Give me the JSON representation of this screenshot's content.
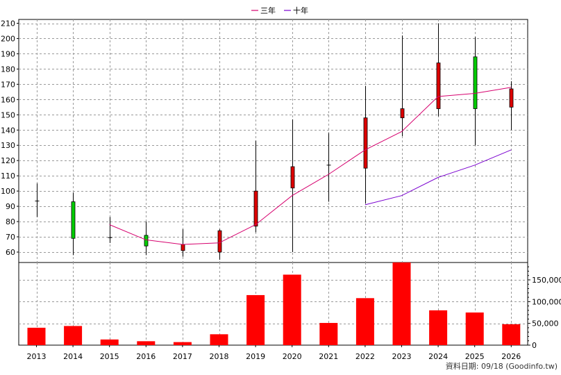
{
  "legend": {
    "items": [
      {
        "label": "三年",
        "color": "#d6006e"
      },
      {
        "label": "十年",
        "color": "#7a00d0"
      }
    ]
  },
  "footer": {
    "source": "資料日期: 09/18  (Goodinfo.tw)"
  },
  "colors": {
    "up_candle": "#dd0000",
    "down_candle": "#00cc00",
    "volume": "#ff0000",
    "grid": "#999999"
  },
  "chart_data": [
    {
      "type": "candlestick",
      "categories": [
        "2013",
        "2014",
        "2015",
        "2016",
        "2017",
        "2018",
        "2019",
        "2020",
        "2021",
        "2022",
        "2023",
        "2024",
        "2025",
        "2026"
      ],
      "ylim": [
        52,
        212
      ],
      "yticks": [
        60,
        70,
        80,
        90,
        100,
        110,
        120,
        130,
        140,
        150,
        160,
        170,
        180,
        190,
        200,
        210
      ],
      "grid": true,
      "legend_position": "top-center",
      "candles": [
        {
          "x": "2013",
          "open": 93.5,
          "high": 105,
          "low": 83,
          "close": 93.5
        },
        {
          "x": "2014",
          "open": 93,
          "high": 99,
          "low": 58,
          "close": 69
        },
        {
          "x": "2015",
          "open": 69.5,
          "high": 83,
          "low": 66,
          "close": 69.5
        },
        {
          "x": "2016",
          "open": 71,
          "high": 80,
          "low": 58,
          "close": 64
        },
        {
          "x": "2017",
          "open": 61,
          "high": 75,
          "low": 57,
          "close": 65
        },
        {
          "x": "2018",
          "open": 60,
          "high": 75,
          "low": 55,
          "close": 74
        },
        {
          "x": "2019",
          "open": 77,
          "high": 133,
          "low": 73,
          "close": 100
        },
        {
          "x": "2020",
          "open": 102,
          "high": 147,
          "low": 60,
          "close": 116
        },
        {
          "x": "2021",
          "open": 117,
          "high": 138,
          "low": 93,
          "close": 117
        },
        {
          "x": "2022",
          "open": 115,
          "high": 169,
          "low": 92,
          "close": 148
        },
        {
          "x": "2023",
          "open": 148,
          "high": 202,
          "low": 136,
          "close": 154
        },
        {
          "x": "2024",
          "open": 154,
          "high": 210,
          "low": 149,
          "close": 184
        },
        {
          "x": "2025",
          "open": 188,
          "high": 201,
          "low": 130,
          "close": 154
        },
        {
          "x": "2026",
          "open": 155,
          "high": 172,
          "low": 140,
          "close": 167
        }
      ],
      "series": [
        {
          "name": "三年",
          "color": "#d6006e",
          "x": [
            "2015",
            "2016",
            "2017",
            "2018",
            "2019",
            "2020",
            "2021",
            "2022",
            "2023",
            "2024",
            "2025",
            "2026"
          ],
          "values": [
            78,
            68,
            65,
            66,
            78,
            97,
            111,
            127,
            139,
            162,
            164,
            168
          ]
        },
        {
          "name": "十年",
          "color": "#7a00d0",
          "x": [
            "2022",
            "2023",
            "2024",
            "2025",
            "2026"
          ],
          "values": [
            91,
            97,
            109,
            117,
            127
          ]
        }
      ]
    },
    {
      "type": "bar",
      "categories": [
        "2013",
        "2014",
        "2015",
        "2016",
        "2017",
        "2018",
        "2019",
        "2020",
        "2021",
        "2022",
        "2023",
        "2024",
        "2025",
        "2026"
      ],
      "values": [
        40000,
        44000,
        13000,
        9000,
        7000,
        25000,
        115000,
        162000,
        51000,
        108000,
        190000,
        80000,
        75000,
        48000
      ],
      "ylim": [
        0,
        190000
      ],
      "yticks": [
        0,
        50000,
        100000,
        150000
      ],
      "ytick_labels": [
        "0",
        "50,000",
        "100,000",
        "150,000"
      ],
      "grid": true
    }
  ]
}
